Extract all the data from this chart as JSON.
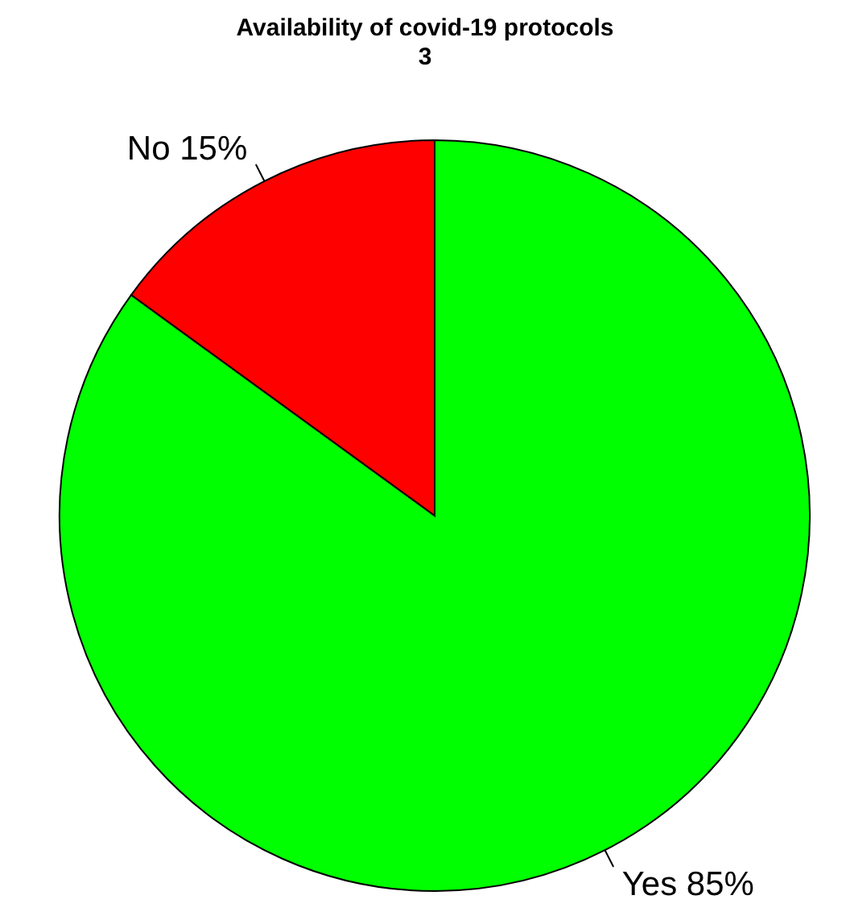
{
  "chart_data": {
    "type": "pie",
    "title": "Availability of covid-19 protocols",
    "subtitle": "3",
    "categories": [
      "Yes",
      "No"
    ],
    "values": [
      85,
      15
    ],
    "colors": [
      "#00ff00",
      "#ff0000"
    ],
    "value_labels": [
      "85%",
      "15%"
    ]
  }
}
